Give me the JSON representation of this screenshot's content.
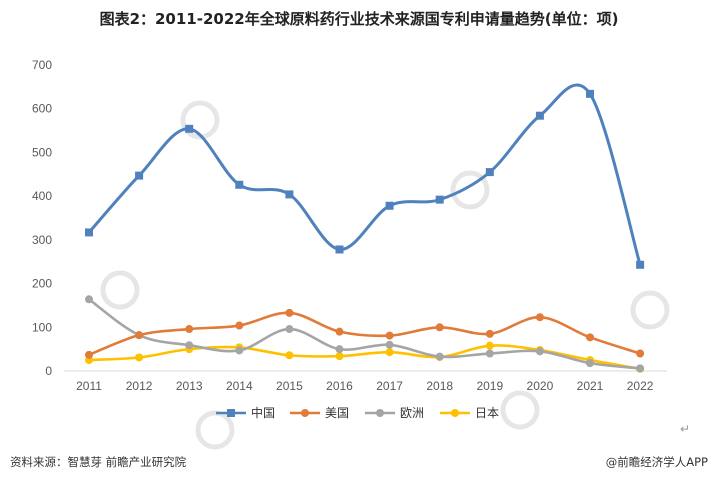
{
  "title": "图表2：2011-2022年全球原料药行业技术来源国专利申请量趋势(单位：项)",
  "source": "资料来源：智慧芽 前瞻产业研究院",
  "brand": "@前瞻经济学人APP",
  "return_mark": "↵",
  "chart_data": {
    "type": "line",
    "smooth": true,
    "title": "图表2：2011-2022年全球原料药行业技术来源国专利申请量趋势(单位：项)",
    "xlabel": "",
    "ylabel": "",
    "x": [
      "2011",
      "2012",
      "2013",
      "2014",
      "2015",
      "2016",
      "2017",
      "2018",
      "2019",
      "2020",
      "2021",
      "2022"
    ],
    "ylim": [
      0,
      700
    ],
    "yticks": [
      0,
      100,
      200,
      300,
      400,
      500,
      600,
      700
    ],
    "grid": false,
    "legend_position": "bottom",
    "series": [
      {
        "name": "中国",
        "color": "#4F81BD",
        "marker": "square",
        "values": [
          317,
          447,
          554,
          426,
          404,
          278,
          378,
          392,
          455,
          584,
          634,
          243
        ]
      },
      {
        "name": "美国",
        "color": "#E07B39",
        "marker": "circle",
        "values": [
          37,
          82,
          96,
          104,
          133,
          90,
          81,
          100,
          85,
          123,
          77,
          40
        ]
      },
      {
        "name": "欧洲",
        "color": "#A5A5A5",
        "marker": "circle",
        "values": [
          164,
          82,
          59,
          47,
          96,
          50,
          60,
          33,
          40,
          45,
          18,
          6
        ]
      },
      {
        "name": "日本",
        "color": "#FFC000",
        "marker": "circle",
        "values": [
          25,
          31,
          50,
          54,
          36,
          34,
          43,
          32,
          58,
          48,
          25,
          5
        ]
      }
    ]
  }
}
